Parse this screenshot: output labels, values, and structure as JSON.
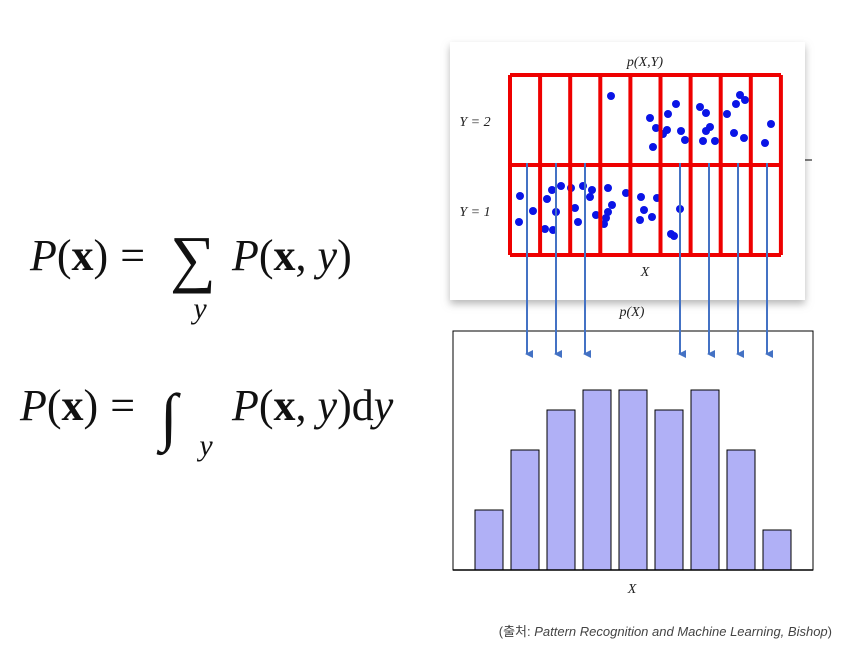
{
  "equations": [
    {
      "lhs": [
        "P",
        "(",
        "x",
        ")"
      ],
      "eq": "=",
      "op": "∑",
      "sub": "y",
      "rhs": [
        "P",
        "(",
        "x",
        ", ",
        "y",
        ")"
      ]
    },
    {
      "lhs": [
        "P",
        "(",
        "x",
        ")"
      ],
      "eq": "=",
      "op": "∫",
      "sub": "y",
      "rhs": [
        "P",
        "(",
        "x",
        ", ",
        "y",
        ")",
        "d",
        "y"
      ]
    }
  ],
  "joint": {
    "title": "p(X,Y)",
    "row_labels": [
      "Y = 2",
      "Y = 1"
    ],
    "x_label": "X"
  },
  "marginal": {
    "title": "p(X)",
    "x_label": "X",
    "values": [
      3,
      6,
      8,
      9,
      9,
      8,
      9,
      6,
      2
    ]
  },
  "caption": {
    "prefix": "(출처: ",
    "source": "Pattern Recognition and Machine Learning, Bishop",
    "suffix": ")"
  }
}
